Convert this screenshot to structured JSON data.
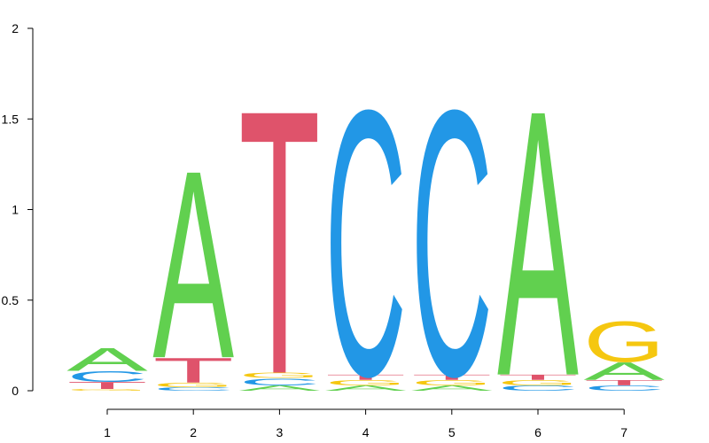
{
  "chart_data": {
    "type": "sequence-logo",
    "title": "",
    "xlabel": "",
    "ylabel": "",
    "ylim": [
      0,
      2
    ],
    "y_ticks": [
      "0",
      "0.5",
      "1",
      "1.5",
      "2"
    ],
    "y_tick_values": [
      0,
      0.5,
      1,
      1.5,
      2
    ],
    "x_ticks": [
      "1",
      "2",
      "3",
      "4",
      "5",
      "6",
      "7"
    ],
    "colors": {
      "A": "#61d04f",
      "C": "#2297e6",
      "G": "#f5c710",
      "T": "#df536b"
    },
    "positions": [
      {
        "label": "1",
        "stack": [
          {
            "letter": "G",
            "height": 0.01
          },
          {
            "letter": "T",
            "height": 0.04
          },
          {
            "letter": "C",
            "height": 0.06
          },
          {
            "letter": "A",
            "height": 0.13
          }
        ]
      },
      {
        "label": "2",
        "stack": [
          {
            "letter": "C",
            "height": 0.02
          },
          {
            "letter": "G",
            "height": 0.025
          },
          {
            "letter": "T",
            "height": 0.14
          },
          {
            "letter": "A",
            "height": 1.06
          }
        ]
      },
      {
        "label": "3",
        "stack": [
          {
            "letter": "A",
            "height": 0.03
          },
          {
            "letter": "C",
            "height": 0.04
          },
          {
            "letter": "G",
            "height": 0.03
          },
          {
            "letter": "T",
            "height": 1.49
          }
        ]
      },
      {
        "label": "4",
        "stack": [
          {
            "letter": "A",
            "height": 0.03
          },
          {
            "letter": "G",
            "height": 0.03
          },
          {
            "letter": "T",
            "height": 0.03
          },
          {
            "letter": "C",
            "height": 1.5
          }
        ]
      },
      {
        "label": "5",
        "stack": [
          {
            "letter": "A",
            "height": 0.03
          },
          {
            "letter": "G",
            "height": 0.03
          },
          {
            "letter": "T",
            "height": 0.03
          },
          {
            "letter": "C",
            "height": 1.5
          }
        ]
      },
      {
        "label": "6",
        "stack": [
          {
            "letter": "C",
            "height": 0.03
          },
          {
            "letter": "G",
            "height": 0.03
          },
          {
            "letter": "T",
            "height": 0.03
          },
          {
            "letter": "A",
            "height": 1.5
          }
        ]
      },
      {
        "label": "7",
        "stack": [
          {
            "letter": "C",
            "height": 0.03
          },
          {
            "letter": "T",
            "height": 0.03
          },
          {
            "letter": "A",
            "height": 0.1
          },
          {
            "letter": "G",
            "height": 0.23
          }
        ]
      }
    ]
  }
}
